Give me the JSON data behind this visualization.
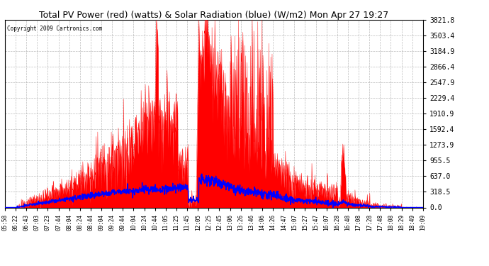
{
  "title": "Total PV Power (red) (watts) & Solar Radiation (blue) (W/m2) Mon Apr 27 19:27",
  "copyright": "Copyright 2009 Cartronics.com",
  "yticks": [
    0.0,
    318.5,
    637.0,
    955.5,
    1273.9,
    1592.4,
    1910.9,
    2229.4,
    2547.9,
    2866.4,
    3184.9,
    3503.4,
    3821.8
  ],
  "ymax": 3821.8,
  "xtick_labels": [
    "05:58",
    "06:22",
    "06:43",
    "07:03",
    "07:23",
    "07:44",
    "08:04",
    "08:24",
    "08:44",
    "09:04",
    "09:24",
    "09:44",
    "10:04",
    "10:24",
    "10:44",
    "11:05",
    "11:25",
    "11:45",
    "12:05",
    "12:25",
    "12:45",
    "13:06",
    "13:26",
    "13:46",
    "14:06",
    "14:26",
    "14:47",
    "15:07",
    "15:27",
    "15:47",
    "16:07",
    "16:28",
    "16:48",
    "17:08",
    "17:28",
    "17:48",
    "18:08",
    "18:29",
    "18:49",
    "19:09"
  ],
  "bg_color": "#ffffff",
  "title_font_size": 11,
  "red_color": "#ff0000",
  "blue_color": "#0000ff",
  "grid_color": "#aaaaaa"
}
